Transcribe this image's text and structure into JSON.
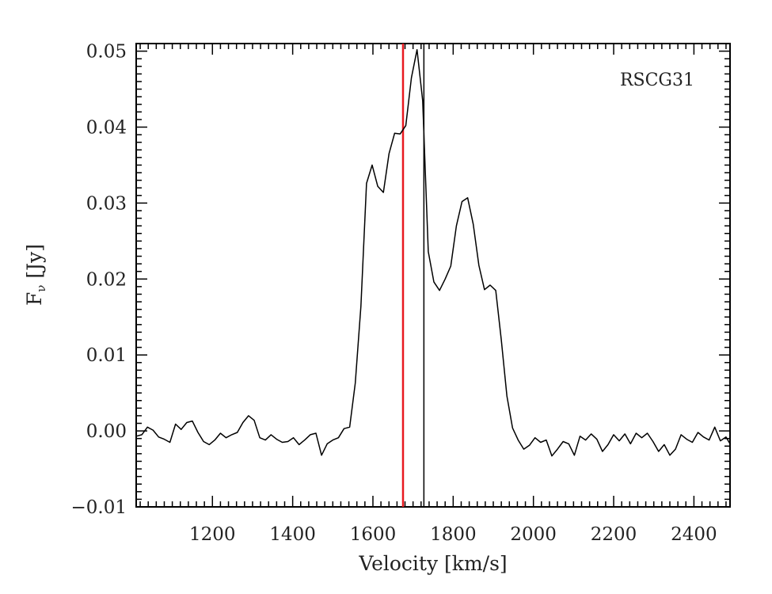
{
  "chart_data": {
    "type": "line",
    "title": "",
    "xlabel": "Velocity [km/s]",
    "ylabel_main": "F",
    "ylabel_sub": "ν",
    "ylabel_unit": " [Jy]",
    "annotation": "RSCG31",
    "xlim": [
      1010,
      2490
    ],
    "ylim": [
      -0.01,
      0.051
    ],
    "x_ticks": [
      1200,
      1400,
      1600,
      1800,
      2000,
      2200,
      2400
    ],
    "x_tick_labels": [
      "1200",
      "1400",
      "1600",
      "1800",
      "2000",
      "2200",
      "2400"
    ],
    "y_ticks": [
      -0.01,
      0.0,
      0.01,
      0.02,
      0.03,
      0.04,
      0.05
    ],
    "y_tick_labels": [
      "−0.01",
      "0.00",
      "0.01",
      "0.02",
      "0.03",
      "0.04",
      "0.05"
    ],
    "grid": false,
    "line_color": "#000000",
    "markers": [
      {
        "x": 1675,
        "color": "#e8191f"
      },
      {
        "x": 1727,
        "color": "#000000"
      }
    ],
    "series": [
      {
        "x": [
          1010,
          1024,
          1038,
          1052,
          1066,
          1080,
          1094,
          1108,
          1122,
          1136,
          1150,
          1164,
          1178,
          1192,
          1206,
          1220,
          1234,
          1248,
          1262,
          1276,
          1290,
          1304,
          1318,
          1332,
          1346,
          1360,
          1374,
          1388,
          1402,
          1416,
          1430,
          1444,
          1458,
          1472,
          1486,
          1500,
          1514,
          1528,
          1542,
          1556,
          1570,
          1584,
          1598,
          1612,
          1626,
          1640,
          1654,
          1668,
          1682,
          1696,
          1710,
          1724,
          1738,
          1752,
          1766,
          1780,
          1794,
          1808,
          1822,
          1836,
          1850,
          1864,
          1878,
          1892,
          1906,
          1920,
          1934,
          1948,
          1962,
          1976,
          1990,
          2004,
          2018,
          2032,
          2046,
          2060,
          2074,
          2088,
          2102,
          2116,
          2130,
          2144,
          2158,
          2172,
          2186,
          2200,
          2214,
          2228,
          2242,
          2256,
          2270,
          2284,
          2298,
          2312,
          2326,
          2340,
          2354,
          2368,
          2382,
          2396,
          2410,
          2424,
          2438,
          2452,
          2466,
          2480,
          2490
        ],
        "values": [
          -0.0007,
          -0.0005,
          0.0005,
          0.0001,
          -0.0008,
          -0.0011,
          -0.0015,
          0.0009,
          0.0002,
          0.0011,
          0.0013,
          -0.0002,
          -0.0014,
          -0.0018,
          -0.0012,
          -0.0003,
          -0.0009,
          -0.0005,
          -0.0002,
          0.0011,
          0.002,
          0.0014,
          -0.0009,
          -0.0012,
          -0.0005,
          -0.0011,
          -0.0015,
          -0.0014,
          -0.0009,
          -0.0018,
          -0.0012,
          -0.0005,
          -0.0003,
          -0.0032,
          -0.0017,
          -0.0012,
          -0.0009,
          0.0003,
          0.0005,
          0.0063,
          0.0164,
          0.0326,
          0.035,
          0.0322,
          0.0314,
          0.0365,
          0.0392,
          0.0391,
          0.0402,
          0.0465,
          0.0502,
          0.0435,
          0.0236,
          0.0196,
          0.0185,
          0.02,
          0.0217,
          0.027,
          0.0302,
          0.0307,
          0.0272,
          0.0218,
          0.0186,
          0.0192,
          0.0185,
          0.012,
          0.0046,
          0.0004,
          -0.0012,
          -0.0024,
          -0.0019,
          -0.0009,
          -0.0015,
          -0.0012,
          -0.0033,
          -0.0024,
          -0.0014,
          -0.0017,
          -0.0032,
          -0.0007,
          -0.0012,
          -0.0004,
          -0.0011,
          -0.0027,
          -0.0018,
          -0.0005,
          -0.0013,
          -0.0004,
          -0.0017,
          -0.0003,
          -0.0009,
          -0.0003,
          -0.0014,
          -0.0027,
          -0.0018,
          -0.0032,
          -0.0024,
          -0.0005,
          -0.0011,
          -0.0015,
          -0.0002,
          -0.0008,
          -0.0012,
          0.0005,
          -0.0013,
          -0.0008,
          -0.0017
        ]
      }
    ]
  }
}
